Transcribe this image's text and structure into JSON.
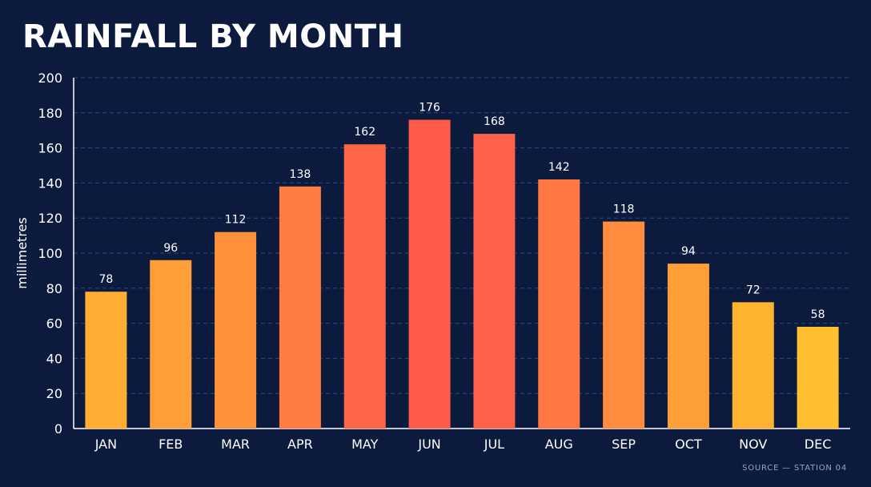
{
  "title": "RAINFALL BY MONTH",
  "source": "SOURCE — STATION 04",
  "colors": {
    "background": "#0b1a3d",
    "grid": "#2f4a7a",
    "axis": "#ffffff",
    "bar_low": "#ffbf2e",
    "bar_high": "#ff5a4a"
  },
  "chart_data": {
    "type": "bar",
    "title": "RAINFALL BY MONTH",
    "xlabel": "",
    "ylabel": "millimetres",
    "categories": [
      "JAN",
      "FEB",
      "MAR",
      "APR",
      "MAY",
      "JUN",
      "JUL",
      "AUG",
      "SEP",
      "OCT",
      "NOV",
      "DEC"
    ],
    "values": [
      78,
      96,
      112,
      138,
      162,
      176,
      168,
      142,
      118,
      94,
      72,
      58
    ],
    "ylim": [
      0,
      200
    ],
    "yticks": [
      0,
      20,
      40,
      60,
      80,
      100,
      120,
      140,
      160,
      180,
      200
    ],
    "grid": true,
    "data_labels": true,
    "legend": "none"
  }
}
